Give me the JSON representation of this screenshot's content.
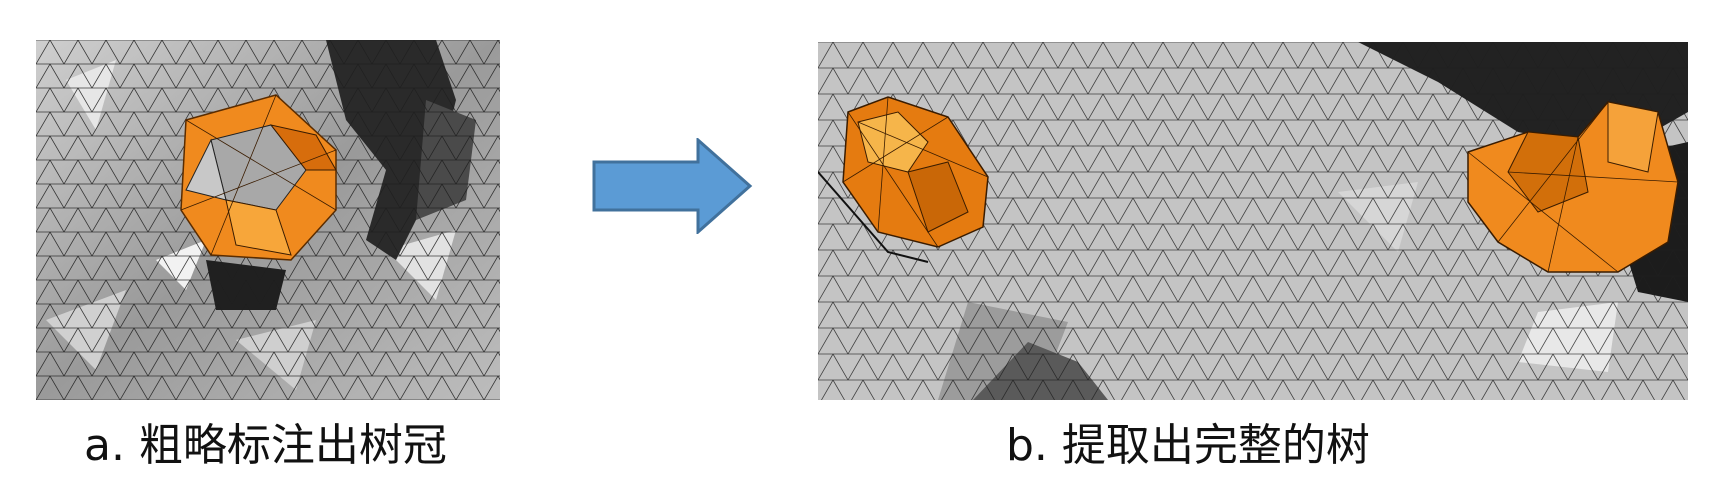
{
  "figure": {
    "panel_a": {
      "caption": "a.  粗略标注出树冠"
    },
    "panel_b": {
      "caption": "b.  提取出完整的树"
    },
    "colors": {
      "mesh_light": "#d8d8d8",
      "mesh_mid": "#a9a9a9",
      "mesh_dark": "#2a2a2a",
      "crown_orange": "#f08a1e",
      "arrow_fill": "#5b9bd5",
      "arrow_stroke": "#41719c"
    }
  }
}
